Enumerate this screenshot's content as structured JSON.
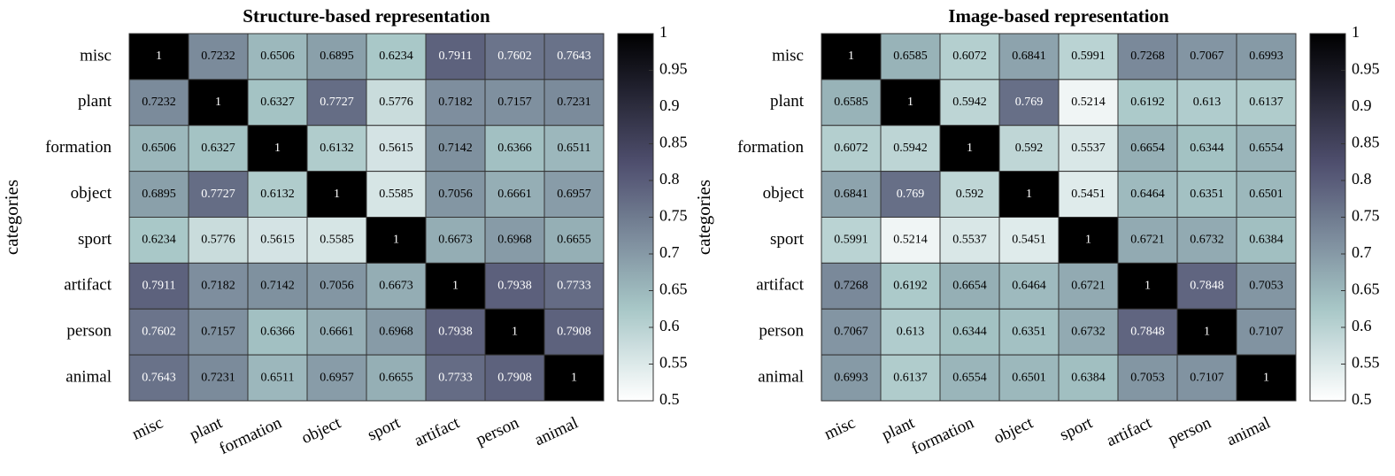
{
  "chart_data": [
    {
      "type": "heatmap",
      "title": "Structure-based representation",
      "ylabel": "categories",
      "categories": [
        "misc",
        "plant",
        "formation",
        "object",
        "sport",
        "artifact",
        "person",
        "animal"
      ],
      "values": [
        [
          1,
          0.7232,
          0.6506,
          0.6895,
          0.6234,
          0.7911,
          0.7602,
          0.7643
        ],
        [
          0.7232,
          1,
          0.6327,
          0.7727,
          0.5776,
          0.7182,
          0.7157,
          0.7231
        ],
        [
          0.6506,
          0.6327,
          1,
          0.6132,
          0.5615,
          0.7142,
          0.6366,
          0.6511
        ],
        [
          0.6895,
          0.7727,
          0.6132,
          1,
          0.5585,
          0.7056,
          0.6661,
          0.6957
        ],
        [
          0.6234,
          0.5776,
          0.5615,
          0.5585,
          1,
          0.6673,
          0.6968,
          0.6655
        ],
        [
          0.7911,
          0.7182,
          0.7142,
          0.7056,
          0.6673,
          1,
          0.7938,
          0.7733
        ],
        [
          0.7602,
          0.7157,
          0.6366,
          0.6661,
          0.6968,
          0.7938,
          1,
          0.7908
        ],
        [
          0.7643,
          0.7231,
          0.6511,
          0.6957,
          0.6655,
          0.7733,
          0.7908,
          1
        ]
      ],
      "colormap": "bone_r",
      "zlim": [
        0.5,
        1
      ],
      "zticks": [
        0.5,
        0.55,
        0.6,
        0.65,
        0.7,
        0.75,
        0.8,
        0.85,
        0.9,
        0.95,
        1
      ]
    },
    {
      "type": "heatmap",
      "title": "Image-based representation",
      "ylabel": "categories",
      "categories": [
        "misc",
        "plant",
        "formation",
        "object",
        "sport",
        "artifact",
        "person",
        "animal"
      ],
      "values": [
        [
          1,
          0.6585,
          0.6072,
          0.6841,
          0.5991,
          0.7268,
          0.7067,
          0.6993
        ],
        [
          0.6585,
          1,
          0.5942,
          0.769,
          0.5214,
          0.6192,
          0.613,
          0.6137
        ],
        [
          0.6072,
          0.5942,
          1,
          0.592,
          0.5537,
          0.6654,
          0.6344,
          0.6554
        ],
        [
          0.6841,
          0.769,
          0.592,
          1,
          0.5451,
          0.6464,
          0.6351,
          0.6501
        ],
        [
          0.5991,
          0.5214,
          0.5537,
          0.5451,
          1,
          0.6721,
          0.6732,
          0.6384
        ],
        [
          0.7268,
          0.6192,
          0.6654,
          0.6464,
          0.6721,
          1,
          0.7848,
          0.7053
        ],
        [
          0.7067,
          0.613,
          0.6344,
          0.6351,
          0.6732,
          0.7848,
          1,
          0.7107
        ],
        [
          0.6993,
          0.6137,
          0.6554,
          0.6501,
          0.6384,
          0.7053,
          0.7107,
          1
        ]
      ],
      "colormap": "bone_r",
      "zlim": [
        0.5,
        1
      ],
      "zticks": [
        0.5,
        0.55,
        0.6,
        0.65,
        0.7,
        0.75,
        0.8,
        0.85,
        0.9,
        0.95,
        1
      ]
    }
  ]
}
